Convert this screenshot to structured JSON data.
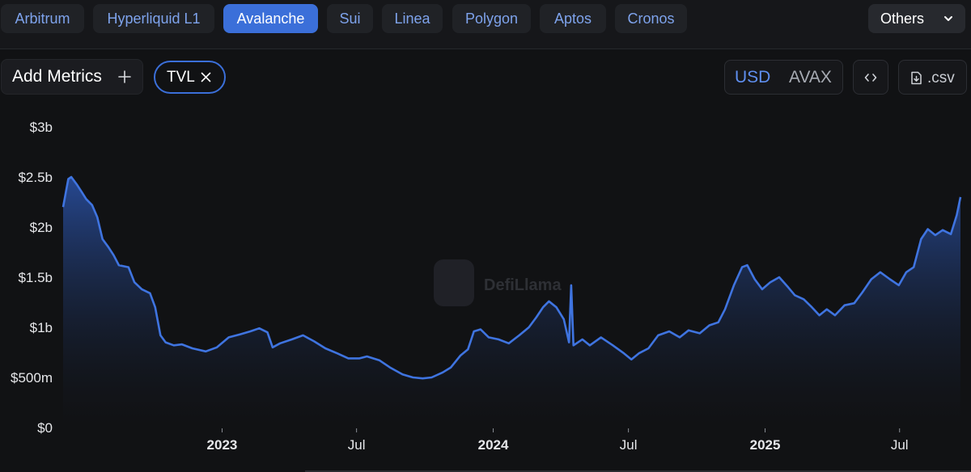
{
  "tabs": [
    {
      "label": "Arbitrum",
      "active": false
    },
    {
      "label": "Hyperliquid L1",
      "active": false
    },
    {
      "label": "Avalanche",
      "active": true
    },
    {
      "label": "Sui",
      "active": false
    },
    {
      "label": "Linea",
      "active": false
    },
    {
      "label": "Polygon",
      "active": false
    },
    {
      "label": "Aptos",
      "active": false
    },
    {
      "label": "Cronos",
      "active": false
    }
  ],
  "others_dropdown": {
    "label": "Others",
    "icon": "chevron-down-icon"
  },
  "toolbar": {
    "add_metrics_label": "Add Metrics",
    "add_icon": "plus-icon",
    "selected_metric": "TVL",
    "currency_options": [
      "USD",
      "AVAX"
    ],
    "currency_selected": "USD",
    "embed_icon": "code-icon",
    "csv_label": ".csv",
    "csv_icon": "download-file-icon"
  },
  "watermark": {
    "text": "DefiLlama"
  },
  "colors": {
    "accent": "#3b6fd9",
    "line": "#3f74e0",
    "area_top": "#2a52a8",
    "background": "#111214",
    "axis_text": "#e6e7ea"
  },
  "chart_data": {
    "type": "area",
    "series": [
      {
        "name": "TVL",
        "points": [
          [
            "2022-06-01",
            2.2
          ],
          [
            "2022-06-08",
            2.48
          ],
          [
            "2022-06-12",
            2.5
          ],
          [
            "2022-06-20",
            2.42
          ],
          [
            "2022-06-26",
            2.35
          ],
          [
            "2022-07-02",
            2.28
          ],
          [
            "2022-07-10",
            2.22
          ],
          [
            "2022-07-17",
            2.1
          ],
          [
            "2022-07-24",
            1.88
          ],
          [
            "2022-08-01",
            1.8
          ],
          [
            "2022-08-08",
            1.72
          ],
          [
            "2022-08-15",
            1.62
          ],
          [
            "2022-08-28",
            1.6
          ],
          [
            "2022-09-05",
            1.45
          ],
          [
            "2022-09-15",
            1.38
          ],
          [
            "2022-09-26",
            1.34
          ],
          [
            "2022-10-03",
            1.2
          ],
          [
            "2022-10-10",
            0.92
          ],
          [
            "2022-10-17",
            0.85
          ],
          [
            "2022-10-28",
            0.82
          ],
          [
            "2022-11-08",
            0.83
          ],
          [
            "2022-11-22",
            0.79
          ],
          [
            "2022-12-10",
            0.76
          ],
          [
            "2022-12-25",
            0.8
          ],
          [
            "2023-01-10",
            0.9
          ],
          [
            "2023-01-25",
            0.93
          ],
          [
            "2023-02-08",
            0.96
          ],
          [
            "2023-02-20",
            0.99
          ],
          [
            "2023-03-03",
            0.95
          ],
          [
            "2023-03-10",
            0.8
          ],
          [
            "2023-03-20",
            0.84
          ],
          [
            "2023-04-05",
            0.88
          ],
          [
            "2023-04-20",
            0.92
          ],
          [
            "2023-05-05",
            0.86
          ],
          [
            "2023-05-20",
            0.79
          ],
          [
            "2023-06-05",
            0.74
          ],
          [
            "2023-06-20",
            0.69
          ],
          [
            "2023-07-05",
            0.69
          ],
          [
            "2023-07-15",
            0.71
          ],
          [
            "2023-08-01",
            0.67
          ],
          [
            "2023-08-15",
            0.6
          ],
          [
            "2023-09-01",
            0.53
          ],
          [
            "2023-09-15",
            0.5
          ],
          [
            "2023-09-28",
            0.49
          ],
          [
            "2023-10-10",
            0.5
          ],
          [
            "2023-10-25",
            0.55
          ],
          [
            "2023-11-05",
            0.6
          ],
          [
            "2023-11-18",
            0.72
          ],
          [
            "2023-11-28",
            0.78
          ],
          [
            "2023-12-06",
            0.96
          ],
          [
            "2023-12-15",
            0.98
          ],
          [
            "2023-12-26",
            0.9
          ],
          [
            "2024-01-08",
            0.88
          ],
          [
            "2024-01-22",
            0.84
          ],
          [
            "2024-02-05",
            0.92
          ],
          [
            "2024-02-18",
            1.0
          ],
          [
            "2024-02-28",
            1.1
          ],
          [
            "2024-03-08",
            1.2
          ],
          [
            "2024-03-16",
            1.26
          ],
          [
            "2024-03-26",
            1.2
          ],
          [
            "2024-04-05",
            1.08
          ],
          [
            "2024-04-12",
            0.85
          ],
          [
            "2024-04-15",
            1.42
          ],
          [
            "2024-04-18",
            0.82
          ],
          [
            "2024-04-30",
            0.88
          ],
          [
            "2024-05-10",
            0.82
          ],
          [
            "2024-05-25",
            0.9
          ],
          [
            "2024-06-10",
            0.82
          ],
          [
            "2024-06-25",
            0.74
          ],
          [
            "2024-07-05",
            0.68
          ],
          [
            "2024-07-15",
            0.74
          ],
          [
            "2024-07-28",
            0.79
          ],
          [
            "2024-08-10",
            0.92
          ],
          [
            "2024-08-25",
            0.96
          ],
          [
            "2024-09-08",
            0.9
          ],
          [
            "2024-09-20",
            0.97
          ],
          [
            "2024-10-05",
            0.94
          ],
          [
            "2024-10-18",
            1.02
          ],
          [
            "2024-10-30",
            1.05
          ],
          [
            "2024-11-08",
            1.18
          ],
          [
            "2024-11-20",
            1.42
          ],
          [
            "2024-12-01",
            1.6
          ],
          [
            "2024-12-08",
            1.62
          ],
          [
            "2024-12-18",
            1.48
          ],
          [
            "2024-12-28",
            1.38
          ],
          [
            "2025-01-08",
            1.45
          ],
          [
            "2025-01-20",
            1.5
          ],
          [
            "2025-02-01",
            1.4
          ],
          [
            "2025-02-10",
            1.32
          ],
          [
            "2025-02-22",
            1.28
          ],
          [
            "2025-03-05",
            1.2
          ],
          [
            "2025-03-15",
            1.12
          ],
          [
            "2025-03-25",
            1.18
          ],
          [
            "2025-04-05",
            1.12
          ],
          [
            "2025-04-18",
            1.22
          ],
          [
            "2025-05-01",
            1.24
          ],
          [
            "2025-05-12",
            1.35
          ],
          [
            "2025-05-24",
            1.48
          ],
          [
            "2025-06-05",
            1.55
          ],
          [
            "2025-06-18",
            1.48
          ],
          [
            "2025-06-30",
            1.42
          ],
          [
            "2025-07-10",
            1.55
          ],
          [
            "2025-07-20",
            1.6
          ],
          [
            "2025-07-30",
            1.88
          ],
          [
            "2025-08-08",
            1.98
          ],
          [
            "2025-08-18",
            1.92
          ],
          [
            "2025-08-28",
            1.97
          ],
          [
            "2025-09-08",
            1.93
          ],
          [
            "2025-09-16",
            2.12
          ],
          [
            "2025-09-21",
            2.3
          ]
        ]
      }
    ],
    "x_ticks": [
      {
        "date": "2023-01-01",
        "label": "2023",
        "bold": true
      },
      {
        "date": "2023-07-01",
        "label": "Jul",
        "bold": false
      },
      {
        "date": "2024-01-01",
        "label": "2024",
        "bold": true
      },
      {
        "date": "2024-07-01",
        "label": "Jul",
        "bold": false
      },
      {
        "date": "2025-01-01",
        "label": "2025",
        "bold": true
      },
      {
        "date": "2025-07-01",
        "label": "Jul",
        "bold": false
      }
    ],
    "y_ticks": [
      {
        "value": 0,
        "label": "$0"
      },
      {
        "value": 0.5,
        "label": "$500m"
      },
      {
        "value": 1,
        "label": "$1b"
      },
      {
        "value": 1.5,
        "label": "$1.5b"
      },
      {
        "value": 2,
        "label": "$2b"
      },
      {
        "value": 2.5,
        "label": "$2.5b"
      },
      {
        "value": 3,
        "label": "$3b"
      }
    ],
    "xlim": [
      "2022-06-01",
      "2025-09-21"
    ],
    "ylim": [
      0,
      3
    ],
    "grid": false,
    "legend": "none"
  }
}
